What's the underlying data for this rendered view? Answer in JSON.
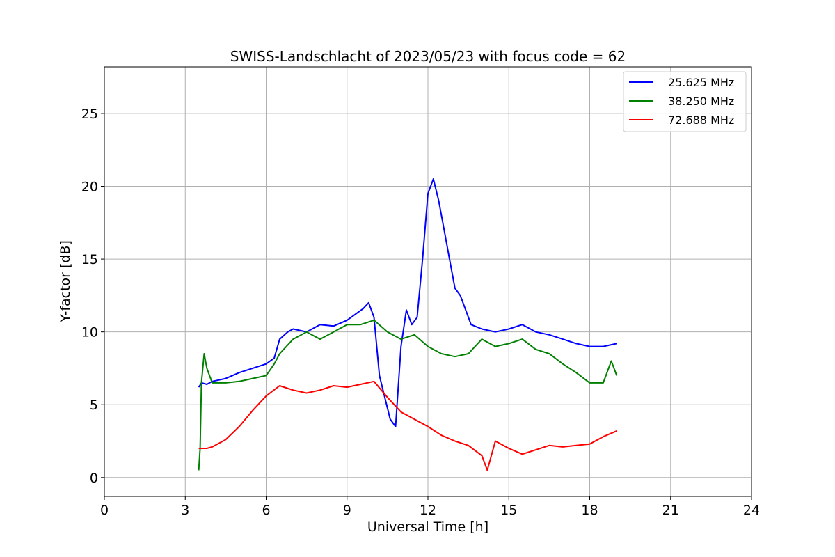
{
  "chart_data": {
    "type": "line",
    "title": "SWISS-Landschlacht of 2023/05/23 with focus code = 62",
    "xlabel": "Universal Time [h]",
    "ylabel": "Y-factor [dB]",
    "xlim": [
      0,
      24
    ],
    "ylim": [
      -1.3,
      28.2
    ],
    "xticks": [
      0,
      3,
      6,
      9,
      12,
      15,
      18,
      21,
      24
    ],
    "yticks": [
      0,
      5,
      10,
      15,
      20,
      25
    ],
    "grid": true,
    "legend_position": "top-right",
    "series": [
      {
        "name": "25.625 MHz",
        "color": "#0000ff",
        "x": [
          3.5,
          3.6,
          3.8,
          4.0,
          4.5,
          5.0,
          5.5,
          6.0,
          6.3,
          6.5,
          6.8,
          7.0,
          7.5,
          8.0,
          8.5,
          9.0,
          9.3,
          9.6,
          9.8,
          10.0,
          10.2,
          10.4,
          10.6,
          10.8,
          11.0,
          11.2,
          11.4,
          11.6,
          11.8,
          12.0,
          12.2,
          12.4,
          12.6,
          12.8,
          13.0,
          13.2,
          13.4,
          13.6,
          14.0,
          14.5,
          15.0,
          15.5,
          16.0,
          16.5,
          17.0,
          17.5,
          18.0,
          18.5,
          19.0
        ],
        "values": [
          6.2,
          6.5,
          6.4,
          6.6,
          6.8,
          7.2,
          7.5,
          7.8,
          8.2,
          9.5,
          10.0,
          10.2,
          10.0,
          10.5,
          10.4,
          10.8,
          11.2,
          11.6,
          12.0,
          11.0,
          7.0,
          5.5,
          4.0,
          3.5,
          9.0,
          11.5,
          10.5,
          11.0,
          15.0,
          19.5,
          20.5,
          19.0,
          17.0,
          15.0,
          13.0,
          12.5,
          11.5,
          10.5,
          10.2,
          10.0,
          10.2,
          10.5,
          10.0,
          9.8,
          9.5,
          9.2,
          9.0,
          9.0,
          9.2
        ]
      },
      {
        "name": "38.250 MHz",
        "color": "#008000",
        "x": [
          3.5,
          3.55,
          3.6,
          3.7,
          3.8,
          4.0,
          4.5,
          5.0,
          5.5,
          6.0,
          6.3,
          6.5,
          7.0,
          7.5,
          8.0,
          8.5,
          9.0,
          9.5,
          10.0,
          10.5,
          11.0,
          11.5,
          12.0,
          12.5,
          13.0,
          13.5,
          14.0,
          14.5,
          15.0,
          15.5,
          16.0,
          16.5,
          17.0,
          17.5,
          18.0,
          18.5,
          18.8,
          19.0
        ],
        "values": [
          0.5,
          2.0,
          6.5,
          8.5,
          7.5,
          6.5,
          6.5,
          6.6,
          6.8,
          7.0,
          7.8,
          8.5,
          9.5,
          10.0,
          9.5,
          10.0,
          10.5,
          10.5,
          10.8,
          10.0,
          9.5,
          9.8,
          9.0,
          8.5,
          8.3,
          8.5,
          9.5,
          9.0,
          9.2,
          9.5,
          8.8,
          8.5,
          7.8,
          7.2,
          6.5,
          6.5,
          8.0,
          7.0
        ]
      },
      {
        "name": "72.688 MHz",
        "color": "#ff0000",
        "x": [
          3.5,
          3.8,
          4.0,
          4.5,
          5.0,
          5.5,
          6.0,
          6.5,
          7.0,
          7.5,
          8.0,
          8.5,
          9.0,
          9.5,
          10.0,
          10.5,
          11.0,
          11.5,
          12.0,
          12.5,
          13.0,
          13.5,
          14.0,
          14.2,
          14.5,
          15.0,
          15.5,
          16.0,
          16.5,
          17.0,
          17.5,
          18.0,
          18.5,
          19.0
        ],
        "values": [
          2.0,
          2.0,
          2.1,
          2.6,
          3.5,
          4.6,
          5.6,
          6.3,
          6.0,
          5.8,
          6.0,
          6.3,
          6.2,
          6.4,
          6.6,
          5.5,
          4.5,
          4.0,
          3.5,
          2.9,
          2.5,
          2.2,
          1.5,
          0.5,
          2.5,
          2.0,
          1.6,
          1.9,
          2.2,
          2.1,
          2.2,
          2.3,
          2.8,
          3.2
        ]
      }
    ]
  }
}
